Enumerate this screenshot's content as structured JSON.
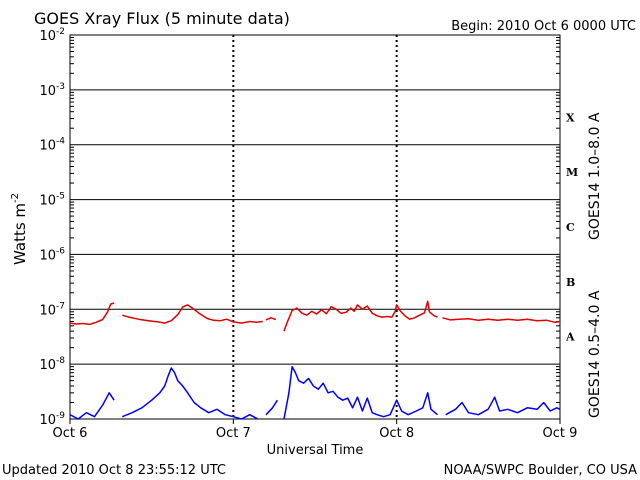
{
  "chart_data": {
    "type": "line",
    "title": "GOES Xray Flux (5 minute data)",
    "begin_label": "Begin:  2010 Oct 6 0000 UTC",
    "xlabel": "Universal Time",
    "ylabel": "Watts m",
    "ylabel_superscript": "-2",
    "updated_label": "Updated 2010 Oct  8 23:55:12 UTC",
    "source_label": "NOAA/SWPC Boulder, CO USA",
    "y_scale": "log",
    "ylim": [
      1e-09,
      0.01
    ],
    "xlim": [
      "2010-10-06 00:00",
      "2010-10-09 00:00"
    ],
    "x_ticks": [
      {
        "at": "2010-10-06 00:00",
        "label": "Oct 6"
      },
      {
        "at": "2010-10-07 00:00",
        "label": "Oct 7"
      },
      {
        "at": "2010-10-08 00:00",
        "label": "Oct 8"
      },
      {
        "at": "2010-10-09 00:00",
        "label": "Oct 9"
      }
    ],
    "y_ticks": [
      {
        "exp": -2,
        "base": "10",
        "sup": "-2"
      },
      {
        "exp": -3,
        "base": "10",
        "sup": "-3"
      },
      {
        "exp": -4,
        "base": "10",
        "sup": "-4"
      },
      {
        "exp": -5,
        "base": "10",
        "sup": "-5"
      },
      {
        "exp": -6,
        "base": "10",
        "sup": "-6"
      },
      {
        "exp": -7,
        "base": "10",
        "sup": "-7"
      },
      {
        "exp": -8,
        "base": "10",
        "sup": "-8"
      },
      {
        "exp": -9,
        "base": "10",
        "sup": "-9"
      }
    ],
    "flare_classes": [
      {
        "label": "X",
        "exp": -3.5
      },
      {
        "label": "M",
        "exp": -4.5
      },
      {
        "label": "C",
        "exp": -5.5
      },
      {
        "label": "B",
        "exp": -6.5
      },
      {
        "label": "A",
        "exp": -7.5
      }
    ],
    "grid": "horizontal lines at each decade; dashed vertical day markers",
    "colors": {
      "long": "#e00000",
      "short": "#0000ff",
      "axes": "#000000"
    },
    "series": [
      {
        "name": "GOES14 1.0–8.0 A",
        "color": "#e00000",
        "points": [
          [
            0.0,
            5.6e-08
          ],
          [
            0.04,
            5.4e-08
          ],
          [
            0.08,
            5.5e-08
          ],
          [
            0.12,
            5.3e-08
          ],
          [
            0.16,
            5.8e-08
          ],
          [
            0.2,
            6.5e-08
          ],
          [
            0.23,
            9e-08
          ],
          [
            0.25,
            1.25e-07
          ],
          [
            0.27,
            1.3e-07
          ],
          null,
          [
            0.32,
            7.8e-08
          ],
          [
            0.36,
            7.2e-08
          ],
          [
            0.42,
            6.6e-08
          ],
          [
            0.48,
            6.2e-08
          ],
          [
            0.54,
            5.9e-08
          ],
          [
            0.58,
            5.6e-08
          ],
          [
            0.62,
            6.2e-08
          ],
          [
            0.66,
            8e-08
          ],
          [
            0.69,
            1.1e-07
          ],
          [
            0.72,
            1.2e-07
          ],
          [
            0.75,
            1.05e-07
          ],
          [
            0.79,
            8.5e-08
          ],
          [
            0.84,
            6.8e-08
          ],
          [
            0.88,
            6.3e-08
          ],
          [
            0.92,
            6.2e-08
          ],
          [
            0.96,
            6.6e-08
          ],
          [
            1.0,
            5.9e-08
          ],
          [
            1.05,
            5.6e-08
          ],
          [
            1.1,
            6e-08
          ],
          [
            1.14,
            5.8e-08
          ],
          [
            1.18,
            6e-08
          ],
          null,
          [
            1.2,
            6.4e-08
          ],
          [
            1.23,
            7e-08
          ],
          [
            1.26,
            6.5e-08
          ],
          null,
          [
            1.31,
            4e-08
          ],
          [
            1.33,
            5.8e-08
          ],
          [
            1.36,
            9.5e-08
          ],
          [
            1.39,
            1.05e-07
          ],
          [
            1.42,
            8.5e-08
          ],
          [
            1.45,
            7.8e-08
          ],
          [
            1.48,
            9.2e-08
          ],
          [
            1.51,
            8.2e-08
          ],
          [
            1.54,
            9.8e-08
          ],
          [
            1.57,
            8.3e-08
          ],
          [
            1.6,
            1.12e-07
          ],
          [
            1.63,
            1e-07
          ],
          [
            1.66,
            8.4e-08
          ],
          [
            1.69,
            8.8e-08
          ],
          [
            1.72,
            1.05e-07
          ],
          [
            1.74,
            9.2e-08
          ],
          [
            1.76,
            1.2e-07
          ],
          [
            1.79,
            1e-07
          ],
          [
            1.82,
            1.15e-07
          ],
          [
            1.85,
            8.5e-08
          ],
          [
            1.88,
            7.6e-08
          ],
          [
            1.91,
            7.2e-08
          ],
          [
            1.94,
            7.4e-08
          ],
          [
            1.97,
            7.2e-08
          ],
          [
            1.99,
            9e-08
          ],
          [
            2.0,
            1.2e-07
          ],
          [
            2.02,
            9.5e-08
          ],
          [
            2.05,
            7.6e-08
          ],
          [
            2.08,
            6.6e-08
          ],
          [
            2.11,
            7e-08
          ],
          [
            2.14,
            7.8e-08
          ],
          [
            2.17,
            8.6e-08
          ],
          [
            2.19,
            1.4e-07
          ],
          [
            2.2,
            9e-08
          ],
          [
            2.23,
            7.6e-08
          ],
          [
            2.25,
            7.2e-08
          ],
          null,
          [
            2.28,
            7e-08
          ],
          [
            2.33,
            6.4e-08
          ],
          [
            2.38,
            6.6e-08
          ],
          [
            2.44,
            6.7e-08
          ],
          [
            2.5,
            6.3e-08
          ],
          [
            2.56,
            6.6e-08
          ],
          [
            2.62,
            6.3e-08
          ],
          [
            2.68,
            6.6e-08
          ],
          [
            2.74,
            6.3e-08
          ],
          [
            2.8,
            6.6e-08
          ],
          [
            2.86,
            6.2e-08
          ],
          [
            2.92,
            6.3e-08
          ],
          [
            2.97,
            5.8e-08
          ],
          [
            3.0,
            6e-08
          ]
        ]
      },
      {
        "name": "GOES14 0.5–4.0 A",
        "color": "#0000ff",
        "points": [
          [
            0.0,
            1.2e-09
          ],
          [
            0.05,
            1e-09
          ],
          [
            0.1,
            1.3e-09
          ],
          [
            0.15,
            1.1e-09
          ],
          [
            0.2,
            1.8e-09
          ],
          [
            0.24,
            3e-09
          ],
          [
            0.27,
            2.2e-09
          ],
          null,
          [
            0.32,
            1.1e-09
          ],
          [
            0.38,
            1.3e-09
          ],
          [
            0.44,
            1.6e-09
          ],
          [
            0.5,
            2.2e-09
          ],
          [
            0.55,
            3e-09
          ],
          [
            0.58,
            4e-09
          ],
          [
            0.6,
            6e-09
          ],
          [
            0.62,
            8.5e-09
          ],
          [
            0.64,
            7e-09
          ],
          [
            0.66,
            5e-09
          ],
          [
            0.69,
            4e-09
          ],
          [
            0.72,
            3e-09
          ],
          [
            0.76,
            2e-09
          ],
          [
            0.8,
            1.6e-09
          ],
          [
            0.85,
            1.3e-09
          ],
          [
            0.9,
            1.5e-09
          ],
          [
            0.95,
            1.2e-09
          ],
          [
            1.0,
            1.1e-09
          ],
          [
            1.05,
            1e-09
          ],
          [
            1.1,
            1.2e-09
          ],
          [
            1.15,
            1e-09
          ],
          null,
          [
            1.2,
            1.2e-09
          ],
          [
            1.24,
            1.6e-09
          ],
          [
            1.27,
            2.2e-09
          ],
          null,
          [
            1.31,
            1e-09
          ],
          [
            1.34,
            3e-09
          ],
          [
            1.36,
            9e-09
          ],
          [
            1.38,
            7e-09
          ],
          [
            1.4,
            5e-09
          ],
          [
            1.43,
            4.5e-09
          ],
          [
            1.46,
            5.5e-09
          ],
          [
            1.49,
            4e-09
          ],
          [
            1.52,
            3.5e-09
          ],
          [
            1.55,
            4.5e-09
          ],
          [
            1.58,
            3e-09
          ],
          [
            1.61,
            3.2e-09
          ],
          [
            1.64,
            2.5e-09
          ],
          [
            1.67,
            2.2e-09
          ],
          [
            1.7,
            2.4e-09
          ],
          [
            1.73,
            1.6e-09
          ],
          [
            1.76,
            2.5e-09
          ],
          [
            1.79,
            1.4e-09
          ],
          [
            1.82,
            2.4e-09
          ],
          [
            1.85,
            1.3e-09
          ],
          [
            1.88,
            1.2e-09
          ],
          [
            1.92,
            1.1e-09
          ],
          [
            1.96,
            1.2e-09
          ],
          [
            2.0,
            2.2e-09
          ],
          [
            2.03,
            1.4e-09
          ],
          [
            2.07,
            1.2e-09
          ],
          [
            2.12,
            1.4e-09
          ],
          [
            2.16,
            1.6e-09
          ],
          [
            2.19,
            3e-09
          ],
          [
            2.21,
            1.5e-09
          ],
          [
            2.25,
            1.2e-09
          ],
          null,
          [
            2.3,
            1.2e-09
          ],
          [
            2.36,
            1.5e-09
          ],
          [
            2.4,
            2e-09
          ],
          [
            2.44,
            1.3e-09
          ],
          [
            2.5,
            1.2e-09
          ],
          [
            2.56,
            1.5e-09
          ],
          [
            2.6,
            2.5e-09
          ],
          [
            2.63,
            1.4e-09
          ],
          [
            2.68,
            1.5e-09
          ],
          [
            2.74,
            1.3e-09
          ],
          [
            2.8,
            1.6e-09
          ],
          [
            2.86,
            1.5e-09
          ],
          [
            2.9,
            2e-09
          ],
          [
            2.94,
            1.4e-09
          ],
          [
            2.98,
            1.6e-09
          ],
          [
            3.0,
            1.5e-09
          ]
        ]
      }
    ]
  }
}
